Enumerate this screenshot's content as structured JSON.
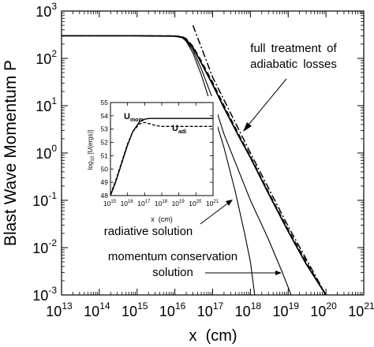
{
  "chart_data": [
    {
      "type": "line",
      "scale": {
        "x": "log",
        "y": "log"
      },
      "xlabel": "x  (cm)",
      "ylabel": "Blast Wave Momentum P",
      "xlim": [
        10000000000000.0,
        1e+21
      ],
      "ylim": [
        0.001,
        1000
      ],
      "x_ticks": [
        {
          "base": "10",
          "exp": "13"
        },
        {
          "base": "10",
          "exp": "14"
        },
        {
          "base": "10",
          "exp": "15"
        },
        {
          "base": "10",
          "exp": "16"
        },
        {
          "base": "10",
          "exp": "17"
        },
        {
          "base": "10",
          "exp": "18"
        },
        {
          "base": "10",
          "exp": "19"
        },
        {
          "base": "10",
          "exp": "20"
        },
        {
          "base": "10",
          "exp": "21"
        }
      ],
      "y_ticks": [
        {
          "base": "10",
          "exp": "-3"
        },
        {
          "base": "10",
          "exp": "-2"
        },
        {
          "base": "10",
          "exp": "-1"
        },
        {
          "base": "10",
          "exp": "0"
        },
        {
          "base": "10",
          "exp": "1"
        },
        {
          "base": "10",
          "exp": "2"
        },
        {
          "base": "10",
          "exp": "3"
        }
      ],
      "series": [
        {
          "style": "solid-thin",
          "color": "#000000",
          "x": [
            10000000000000.0,
            1000000000000000.0,
            1e+16,
            1.6e+16,
            2e+16,
            3e+16,
            5e+16,
            1e+17,
            2e+17,
            4e+17,
            7e+17,
            1e+18,
            1.3e+18
          ],
          "y": [
            300,
            300,
            295,
            270,
            230,
            130,
            45,
            8,
            1.3,
            0.15,
            0.02,
            0.005,
            0.001
          ]
        },
        {
          "style": "solid-thin",
          "color": "#000000",
          "x": [
            10000000000000.0,
            1000000000000000.0,
            1e+16,
            1.6e+16,
            2e+16,
            3e+16,
            5e+16,
            1e+17,
            2e+17,
            5e+17,
            1e+18,
            3e+18,
            7e+18,
            1.2e+19
          ],
          "y": [
            300,
            300,
            295,
            275,
            240,
            150,
            60,
            14,
            2.5,
            0.4,
            0.1,
            0.015,
            0.003,
            0.001
          ]
        },
        {
          "style": "solid-thick",
          "color": "#000000",
          "x": [
            10000000000000.0,
            1000000000000000.0,
            1e+16,
            1.6e+16,
            2e+16,
            3e+16,
            5e+16,
            1e+17,
            2e+17,
            5e+17,
            1e+18,
            3e+18,
            1e+19,
            3e+19,
            1e+20
          ],
          "y": [
            300,
            300,
            295,
            280,
            250,
            170,
            80,
            28,
            9,
            2.2,
            0.8,
            0.14,
            0.022,
            0.0045,
            0.001
          ]
        },
        {
          "style": "dashed",
          "color": "#000000",
          "x": [
            10000000000000.0,
            1000000000000000.0,
            1e+16,
            1.6e+16,
            2e+16,
            3e+16,
            5e+16,
            1e+17,
            2e+17,
            5e+17,
            1e+18,
            3e+18,
            1e+19,
            3e+19,
            1e+20
          ],
          "y": [
            300,
            300,
            298,
            285,
            260,
            180,
            88,
            31,
            10,
            2.4,
            0.85,
            0.15,
            0.024,
            0.005,
            0.001
          ]
        },
        {
          "style": "dash-dot",
          "color": "#000000",
          "x": [
            3e+16,
            1e+17,
            1e+18,
            1e+19,
            1e+20
          ],
          "y": [
            500,
            40,
            1.0,
            0.028,
            0.0009
          ]
        }
      ],
      "annotations": [
        {
          "lines": [
            "full treatment of",
            "adiabatic losses"
          ]
        },
        {
          "lines": [
            "radiative solution"
          ]
        },
        {
          "lines": [
            "momentum conservation",
            "solution"
          ]
        }
      ]
    },
    {
      "type": "line",
      "inset": true,
      "scale": {
        "x": "log",
        "y": "linear"
      },
      "xlabel": "x  (cm)",
      "ylabel": "log10 [U(ergs)]",
      "ylabel_parts": {
        "pre": "log",
        "sub": "10",
        "post": " [U(ergs)]"
      },
      "xlim": [
        1000000000000000.0,
        1e+21
      ],
      "ylim": [
        48,
        55
      ],
      "x_ticks": [
        {
          "base": "10",
          "exp": "15"
        },
        {
          "base": "10",
          "exp": "16"
        },
        {
          "base": "10",
          "exp": "17"
        },
        {
          "base": "10",
          "exp": "18"
        },
        {
          "base": "10",
          "exp": "19"
        },
        {
          "base": "10",
          "exp": "20"
        },
        {
          "base": "10",
          "exp": "21"
        }
      ],
      "y_ticks": [
        "48",
        "49",
        "50",
        "51",
        "52",
        "53",
        "54",
        "55"
      ],
      "series": [
        {
          "style": "solid",
          "x": [
            1000000000000000.0,
            2000000000000000.0,
            5000000000000000.0,
            1e+16,
            2e+16,
            5e+16,
            1e+17,
            2e+17,
            1e+18,
            1e+21
          ],
          "y": [
            48.0,
            49.0,
            50.6,
            51.8,
            52.8,
            53.55,
            53.75,
            53.8,
            53.8,
            53.8
          ]
        },
        {
          "style": "dashed",
          "x": [
            1000000000000000.0,
            2000000000000000.0,
            5000000000000000.0,
            1e+16,
            2e+16,
            5e+16,
            1e+17,
            2e+17,
            5e+17,
            1e+18,
            1e+21
          ],
          "y": [
            48.1,
            49.1,
            50.7,
            51.9,
            52.8,
            53.4,
            53.5,
            53.4,
            53.25,
            53.2,
            53.2
          ]
        }
      ],
      "labels": [
        {
          "main": "U",
          "sub": "mom"
        },
        {
          "main": "U",
          "sub": "adi"
        }
      ]
    }
  ]
}
